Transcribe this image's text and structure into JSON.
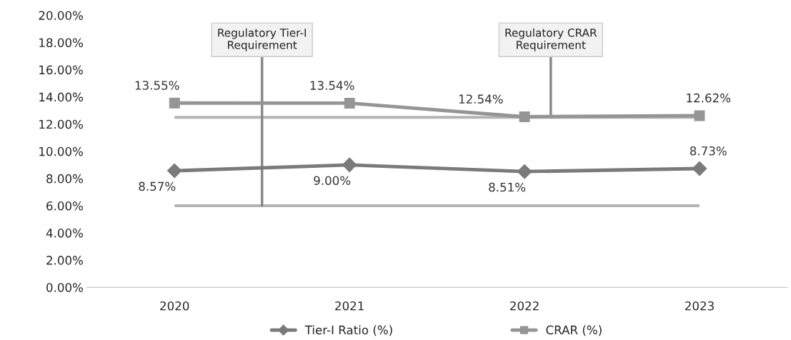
{
  "chart_data": {
    "type": "line",
    "categories": [
      "2020",
      "2021",
      "2022",
      "2023"
    ],
    "series": [
      {
        "name": "Tier-I Ratio (%)",
        "color": "#7a7a7a",
        "marker": "diamond",
        "values": [
          8.57,
          9.0,
          8.51,
          8.73
        ],
        "value_labels": [
          "8.57%",
          "9.00%",
          "8.51%",
          "8.73%"
        ]
      },
      {
        "name": "CRAR (%)",
        "color": "#959595",
        "marker": "square",
        "values": [
          13.55,
          13.54,
          12.54,
          12.62
        ],
        "value_labels": [
          "13.55%",
          "13.54%",
          "12.54%",
          "12.62%"
        ]
      }
    ],
    "ylim": [
      0,
      20
    ],
    "yticks": [
      {
        "value": 0,
        "label": "0.00%"
      },
      {
        "value": 2,
        "label": "2.00%"
      },
      {
        "value": 4,
        "label": "4.00%"
      },
      {
        "value": 6,
        "label": "6.00%"
      },
      {
        "value": 8,
        "label": "8.00%"
      },
      {
        "value": 10,
        "label": "10.00%"
      },
      {
        "value": 12,
        "label": "12.00%"
      },
      {
        "value": 14,
        "label": "14.00%"
      },
      {
        "value": 16,
        "label": "16.00%"
      },
      {
        "value": 18,
        "label": "18.00%"
      },
      {
        "value": 20,
        "label": "20.00%"
      }
    ],
    "ref_lines": [
      {
        "axis": "y",
        "value": 6,
        "label": "Regulatory Tier-I\nRequirement",
        "color": "#b4b4b4"
      },
      {
        "axis": "y",
        "value": 12.5,
        "label": "Regulatory CRAR\nRequirement",
        "color": "#b4b4b4"
      }
    ],
    "grid": false,
    "legend": "bottom",
    "line_style": "solid"
  }
}
